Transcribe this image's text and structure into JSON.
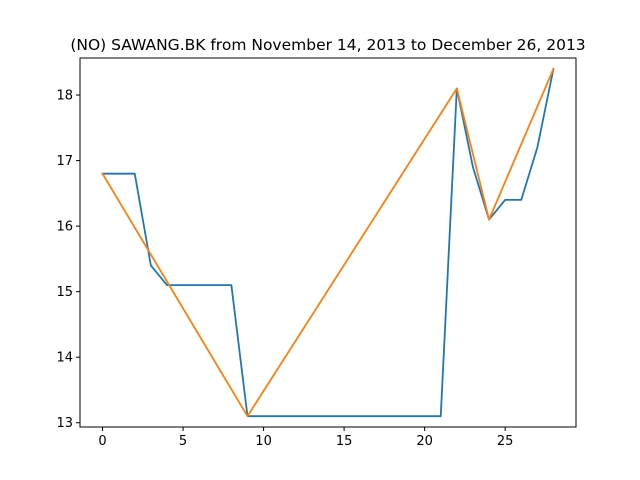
{
  "chart_data": {
    "type": "line",
    "title": "(NO) SAWANG.BK from November 14, 2013 to December 26, 2013",
    "xlabel": "",
    "ylabel": "",
    "xlim": [
      -1.4,
      29.4
    ],
    "ylim": [
      12.935,
      18.565
    ],
    "xticks": [
      0,
      5,
      10,
      15,
      20,
      25
    ],
    "yticks": [
      13,
      14,
      15,
      16,
      17,
      18
    ],
    "grid": false,
    "series": [
      {
        "color": "#1f77b4",
        "x": [
          0,
          1,
          2,
          3,
          4,
          5,
          6,
          7,
          8,
          9,
          10,
          11,
          12,
          13,
          14,
          15,
          16,
          17,
          18,
          19,
          20,
          21,
          22,
          23,
          24,
          25,
          26,
          27,
          28
        ],
        "y": [
          16.8,
          16.8,
          16.8,
          15.4,
          15.1,
          15.1,
          15.1,
          15.1,
          15.1,
          13.1,
          13.1,
          13.1,
          13.1,
          13.1,
          13.1,
          13.1,
          13.1,
          13.1,
          13.1,
          13.1,
          13.1,
          13.1,
          18.1,
          16.9,
          16.1,
          16.4,
          16.4,
          17.2,
          18.4
        ]
      },
      {
        "color": "#ff7f0e",
        "x": [
          0,
          9,
          22,
          24,
          28
        ],
        "y": [
          16.8,
          13.1,
          18.1,
          16.1,
          18.4
        ]
      }
    ]
  }
}
